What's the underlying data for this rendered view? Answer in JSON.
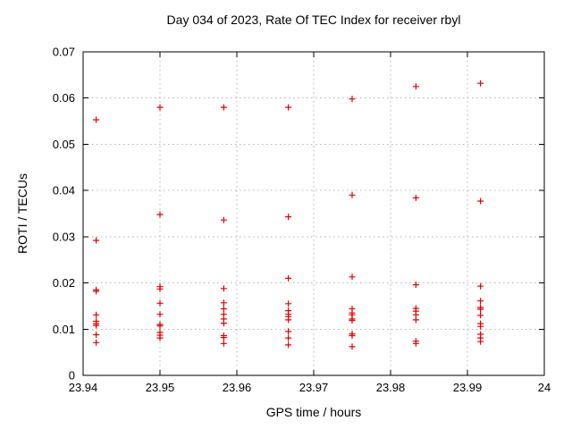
{
  "chart_data": {
    "type": "scatter",
    "title": "Day 034 of 2023, Rate Of TEC Index for receiver rbyl",
    "xlabel": "GPS time / hours",
    "ylabel": "ROTI / TECUs",
    "xlim": [
      23.94,
      24
    ],
    "ylim": [
      0,
      0.07
    ],
    "x_ticks": [
      23.94,
      23.95,
      23.96,
      23.97,
      23.98,
      23.99,
      24
    ],
    "x_tick_labels": [
      "23.94",
      "23.95",
      "23.96",
      "23.97",
      "23.98",
      "23.99",
      "24"
    ],
    "y_ticks": [
      0,
      0.01,
      0.02,
      0.03,
      0.04,
      0.05,
      0.06,
      0.07
    ],
    "y_tick_labels": [
      "0",
      "0.01",
      "0.02",
      "0.03",
      "0.04",
      "0.05",
      "0.06",
      "0.07"
    ],
    "grid": true,
    "legend_position": "none",
    "marker": "plus",
    "colors": {
      "marker": "#e60000",
      "grid": "#b3b3b3",
      "border": "#000000",
      "background": "#ffffff",
      "text": "#000000"
    },
    "series": [
      {
        "name": "ROTI",
        "columns": [
          {
            "x": 23.9417,
            "y": [
              0.0553,
              0.0292,
              0.0185,
              0.0182,
              0.0131,
              0.0117,
              0.0112,
              0.0108,
              0.0088,
              0.0071
            ]
          },
          {
            "x": 23.95,
            "y": [
              0.058,
              0.0348,
              0.0192,
              0.0187,
              0.0156,
              0.0132,
              0.011,
              0.0107,
              0.0093,
              0.0087,
              0.0081
            ]
          },
          {
            "x": 23.9583,
            "y": [
              0.058,
              0.0336,
              0.0188,
              0.0157,
              0.0144,
              0.0132,
              0.0122,
              0.0113,
              0.0086,
              0.0082,
              0.0069
            ]
          },
          {
            "x": 23.9667,
            "y": [
              0.058,
              0.0343,
              0.021,
              0.0155,
              0.014,
              0.0132,
              0.0127,
              0.012,
              0.0095,
              0.0081,
              0.0066
            ]
          },
          {
            "x": 23.975,
            "y": [
              0.0598,
              0.039,
              0.0213,
              0.0144,
              0.0135,
              0.0131,
              0.0122,
              0.0119,
              0.009,
              0.0086,
              0.0062
            ]
          },
          {
            "x": 23.9833,
            "y": [
              0.0625,
              0.0384,
              0.0196,
              0.0145,
              0.0139,
              0.0131,
              0.012,
              0.0074,
              0.0069
            ]
          },
          {
            "x": 23.9917,
            "y": [
              0.0632,
              0.0377,
              0.0193,
              0.0161,
              0.0147,
              0.0143,
              0.013,
              0.0112,
              0.0106,
              0.0089,
              0.0081,
              0.0073
            ]
          }
        ]
      }
    ]
  }
}
